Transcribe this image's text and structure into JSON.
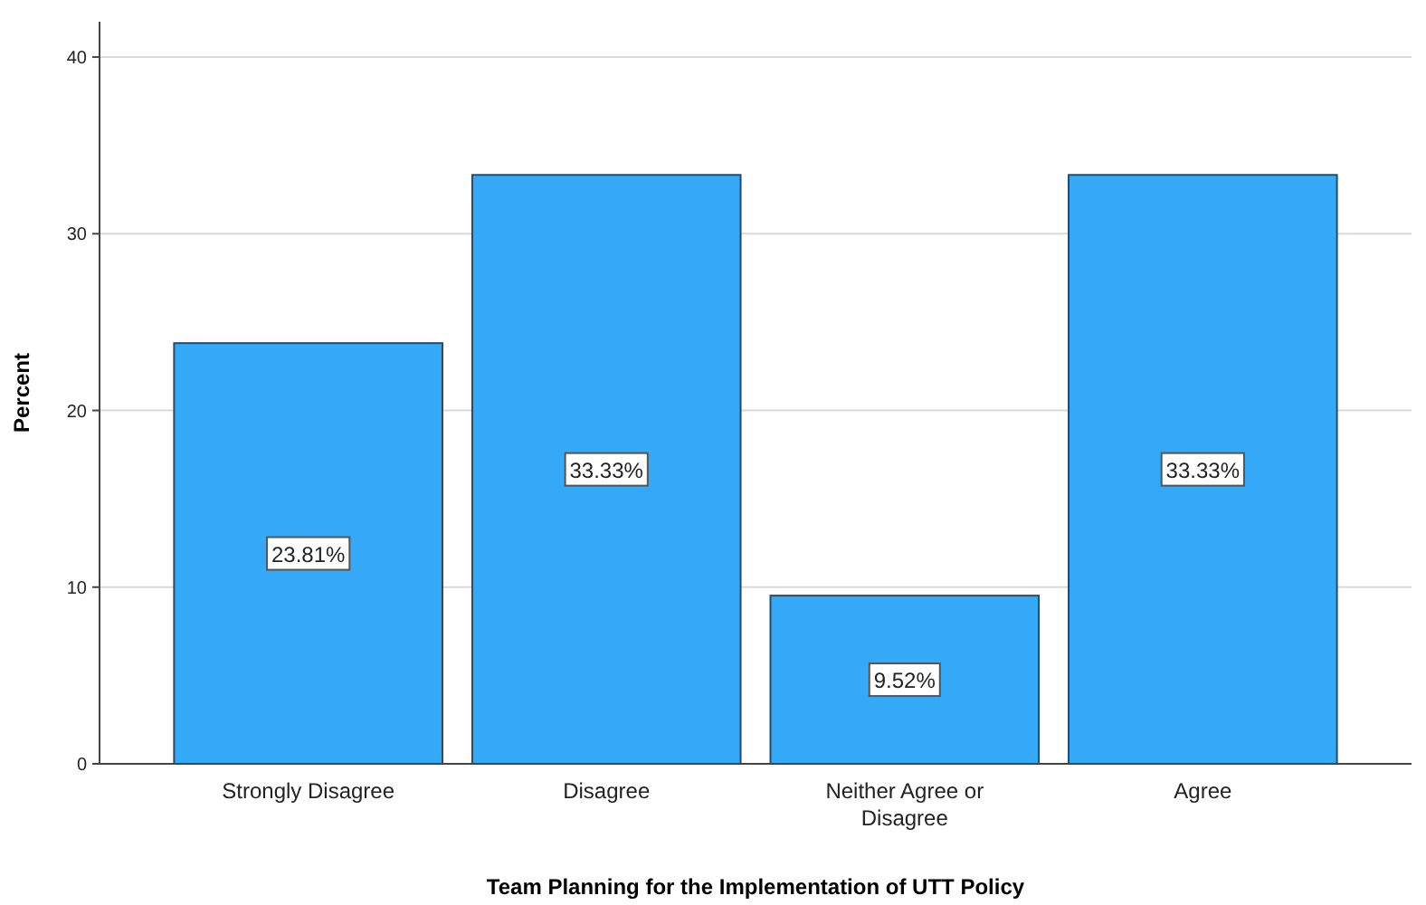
{
  "chart_data": {
    "type": "bar",
    "xlabel": "Team Planning for the Implementation of UTT Policy",
    "ylabel": "Percent",
    "categories": [
      "Strongly Disagree",
      "Disagree",
      "Neither Agree or Disagree",
      "Agree"
    ],
    "values": [
      23.81,
      33.33,
      9.52,
      33.33
    ],
    "value_labels": [
      "23.81%",
      "33.33%",
      "9.52%",
      "33.33%"
    ],
    "color": "#33a9f7",
    "ylim": [
      0,
      42
    ],
    "yticks": [
      0,
      10,
      20,
      30,
      40
    ],
    "grid": "y"
  }
}
